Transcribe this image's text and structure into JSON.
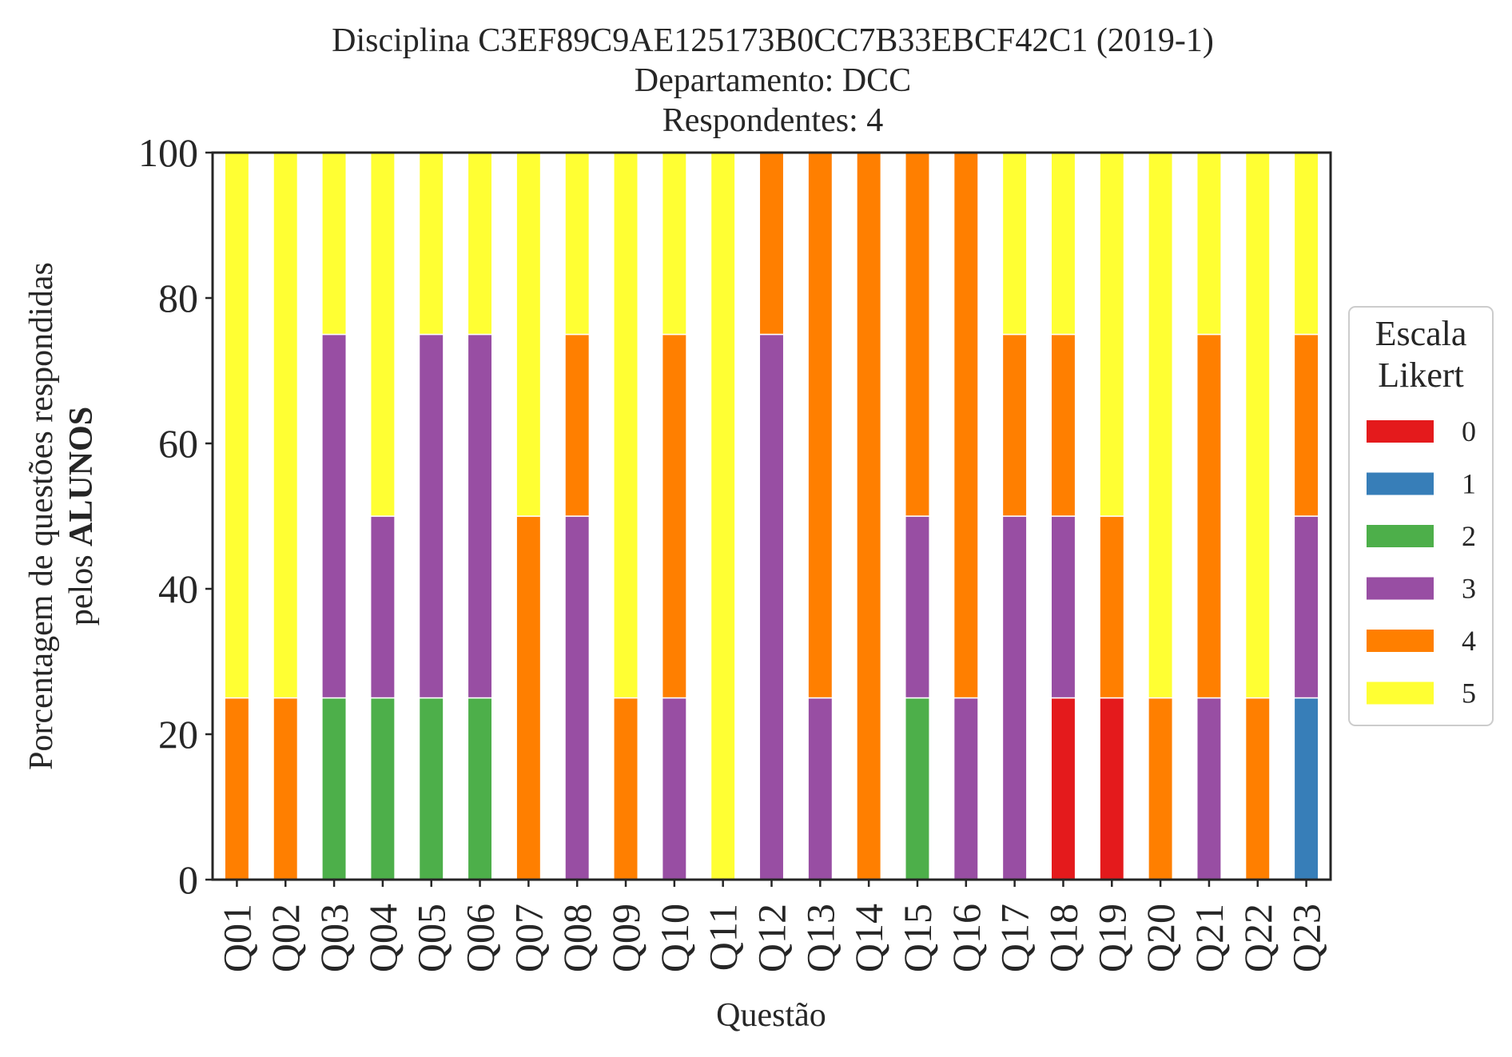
{
  "chart_data": {
    "type": "bar",
    "stacked": true,
    "title_lines": [
      "Disciplina C3EF89C9AE125173B0CC7B33EBCF42C1 (2019-1)",
      "Departamento: DCC",
      "Respondentes: 4"
    ],
    "xlabel": "Questão",
    "ylabel_line1": "Porcentagem de questões respondidas",
    "ylabel_line2_prefix": "pelos ",
    "ylabel_line2_bold": "ALUNOS",
    "ylim": [
      0,
      100
    ],
    "yticks": [
      "0",
      "20",
      "40",
      "60",
      "80",
      "100"
    ],
    "grid": false,
    "legend_placement": "right",
    "legend": {
      "title_lines": [
        "Escala",
        "Likert"
      ],
      "items": [
        "0",
        "1",
        "2",
        "3",
        "4",
        "5"
      ]
    },
    "categories": [
      "Q01",
      "Q02",
      "Q03",
      "Q04",
      "Q05",
      "Q06",
      "Q07",
      "Q08",
      "Q09",
      "Q10",
      "Q11",
      "Q12",
      "Q13",
      "Q14",
      "Q15",
      "Q16",
      "Q17",
      "Q18",
      "Q19",
      "Q20",
      "Q21",
      "Q22",
      "Q23"
    ],
    "series": [
      {
        "name": "0",
        "color": "#e41a1c",
        "values": [
          0,
          0,
          0,
          0,
          0,
          0,
          0,
          0,
          0,
          0,
          0,
          0,
          0,
          0,
          0,
          0,
          0,
          25,
          25,
          0,
          0,
          0,
          0
        ]
      },
      {
        "name": "1",
        "color": "#377eb8",
        "values": [
          0,
          0,
          0,
          0,
          0,
          0,
          0,
          0,
          0,
          0,
          0,
          0,
          0,
          0,
          0,
          0,
          0,
          0,
          0,
          0,
          0,
          0,
          25
        ]
      },
      {
        "name": "2",
        "color": "#4daf4a",
        "values": [
          0,
          0,
          25,
          25,
          25,
          25,
          0,
          0,
          0,
          0,
          0,
          0,
          0,
          0,
          25,
          0,
          0,
          0,
          0,
          0,
          0,
          0,
          0
        ]
      },
      {
        "name": "3",
        "color": "#984ea3",
        "values": [
          0,
          0,
          50,
          25,
          50,
          50,
          0,
          50,
          0,
          25,
          0,
          75,
          25,
          0,
          25,
          25,
          50,
          25,
          0,
          0,
          25,
          0,
          25
        ]
      },
      {
        "name": "4",
        "color": "#ff7f00",
        "values": [
          25,
          25,
          0,
          0,
          0,
          0,
          50,
          25,
          25,
          50,
          0,
          25,
          75,
          100,
          50,
          75,
          25,
          25,
          25,
          25,
          50,
          25,
          25
        ]
      },
      {
        "name": "5",
        "color": "#ffff33",
        "values": [
          75,
          75,
          25,
          50,
          25,
          25,
          50,
          25,
          75,
          25,
          100,
          0,
          0,
          0,
          0,
          0,
          25,
          25,
          50,
          75,
          25,
          75,
          25
        ]
      }
    ]
  }
}
